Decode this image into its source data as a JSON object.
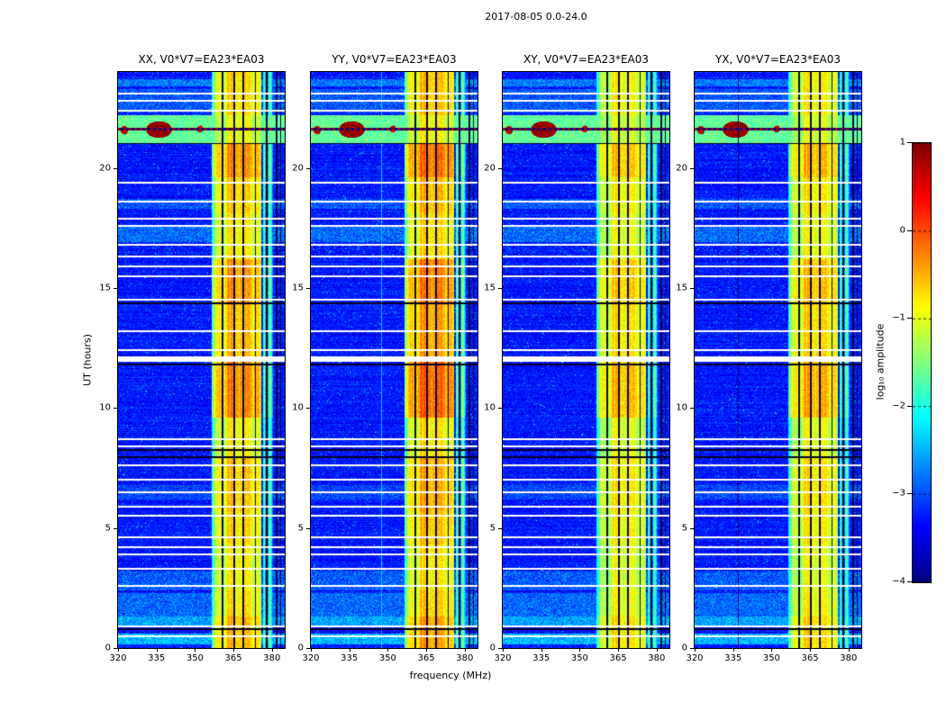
{
  "chart_data": {
    "type": "heatmap",
    "title": "2017-08-05 0.0-24.0",
    "xlabel": "frequency (MHz)",
    "ylabel": "UT (hours)",
    "x_range": [
      320,
      385
    ],
    "y_range": [
      0,
      24
    ],
    "x_ticks": [
      320,
      335,
      350,
      365,
      380
    ],
    "y_ticks": [
      0,
      5,
      10,
      15,
      20
    ],
    "colormap": "jet",
    "colorbar": {
      "label": "log₁₀ amplitude",
      "ticks": [
        1,
        0,
        -1,
        -2,
        -3,
        -4
      ],
      "vmin": -4,
      "vmax": 1
    },
    "panels": [
      {
        "pol": "XX",
        "title": "XX, V0*V7=EA23*EA03",
        "band_gain": 1.0,
        "band_offset": 0.0,
        "seed": 101
      },
      {
        "pol": "YY",
        "title": "YY, V0*V7=EA23*EA03",
        "band_gain": 1.15,
        "band_offset": 0.1,
        "seed": 202,
        "light_vline_mhz": 347.5
      },
      {
        "pol": "XY",
        "title": "XY, V0*V7=EA23*EA03",
        "band_gain": 0.8,
        "band_offset": -0.15,
        "seed": 303
      },
      {
        "pol": "YX",
        "title": "YX, V0*V7=EA23*EA03",
        "band_gain": 0.85,
        "band_offset": -0.1,
        "seed": 404,
        "dark_vline_mhz": 337.0
      }
    ],
    "features": {
      "noise_floor": -3.55,
      "rfi_band": {
        "f0": 358,
        "f1": 376,
        "base": -1.15,
        "bright_cols": [
          [
            359.5,
            361,
            0.1
          ],
          [
            362.5,
            367,
            0.35
          ],
          [
            367.5,
            372.5,
            0.25
          ]
        ]
      },
      "secondary_band": {
        "f0": 376.5,
        "f1": 380.5,
        "base": -2.3
      },
      "dark_vlines_mhz": [
        360.9,
        365.3,
        368.9,
        373.6,
        377.9,
        381.7,
        383.4
      ],
      "time_blocks": [
        [
          0,
          1.3,
          0.3
        ],
        [
          1.3,
          2.4,
          0.1
        ],
        [
          2.4,
          4.3,
          0.0
        ],
        [
          4.3,
          5.7,
          0.15
        ],
        [
          5.7,
          8.0,
          0.25
        ],
        [
          8.0,
          9.6,
          0.0
        ],
        [
          9.6,
          12.0,
          0.55
        ],
        [
          12.0,
          14.3,
          0.3
        ],
        [
          14.3,
          16.2,
          0.45
        ],
        [
          16.2,
          18.1,
          0.05
        ],
        [
          18.1,
          19.6,
          0.2
        ],
        [
          19.6,
          21.0,
          0.5
        ],
        [
          21.0,
          22.2,
          -0.1
        ],
        [
          22.2,
          24.0,
          0.15
        ]
      ],
      "white_lines": [
        [
          23.1,
          0.07
        ],
        [
          22.8,
          0.07
        ],
        [
          22.4,
          0.07
        ],
        [
          19.4,
          0.07
        ],
        [
          18.6,
          0.07
        ],
        [
          17.9,
          0.07
        ],
        [
          17.6,
          0.07
        ],
        [
          16.8,
          0.07
        ],
        [
          16.3,
          0.07
        ],
        [
          15.9,
          0.07
        ],
        [
          15.5,
          0.07
        ],
        [
          14.5,
          0.07
        ],
        [
          13.2,
          0.07
        ],
        [
          12.4,
          0.07
        ],
        [
          12.05,
          0.22
        ],
        [
          8.7,
          0.07
        ],
        [
          8.4,
          0.07
        ],
        [
          7.6,
          0.07
        ],
        [
          7.0,
          0.07
        ],
        [
          6.5,
          0.07
        ],
        [
          5.9,
          0.07
        ],
        [
          5.5,
          0.07
        ],
        [
          4.6,
          0.07
        ],
        [
          4.2,
          0.07
        ],
        [
          3.9,
          0.07
        ],
        [
          3.3,
          0.07
        ],
        [
          2.6,
          0.07
        ],
        [
          0.9,
          0.07
        ],
        [
          0.5,
          0.07
        ]
      ],
      "black_lines": [
        [
          14.36,
          0.1
        ],
        [
          11.82,
          0.07
        ],
        [
          8.25,
          0.07
        ],
        [
          7.95,
          0.07
        ],
        [
          21.02,
          0.06
        ],
        [
          0.78,
          0.06
        ]
      ],
      "cyan_bands": [
        [
          0.15,
          0.6,
          -2.6
        ],
        [
          0.85,
          1.3,
          -2.7
        ],
        [
          1.3,
          2.3,
          -3.0
        ],
        [
          2.4,
          3.2,
          -3.1
        ],
        [
          6.2,
          6.8,
          -3.2
        ],
        [
          16.9,
          17.6,
          -3.0
        ],
        [
          18.3,
          18.7,
          -3.1
        ],
        [
          22.3,
          23.3,
          -3.1
        ],
        [
          23.4,
          23.7,
          -2.9
        ]
      ],
      "speckle_bands": [
        [
          16.2,
          17.4
        ],
        [
          2.5,
          3.3
        ]
      ],
      "event_band": {
        "t0": 21.0,
        "t1": 22.2,
        "level": -1.7,
        "dash_t": [
          21.55,
          21.68
        ],
        "blobs": [
          [
            336,
            21.6,
            5,
            0.35,
            0.7
          ],
          [
            322.5,
            21.58,
            1.5,
            0.18,
            0.5
          ],
          [
            352,
            21.62,
            1.3,
            0.15,
            0.45
          ]
        ]
      }
    }
  }
}
